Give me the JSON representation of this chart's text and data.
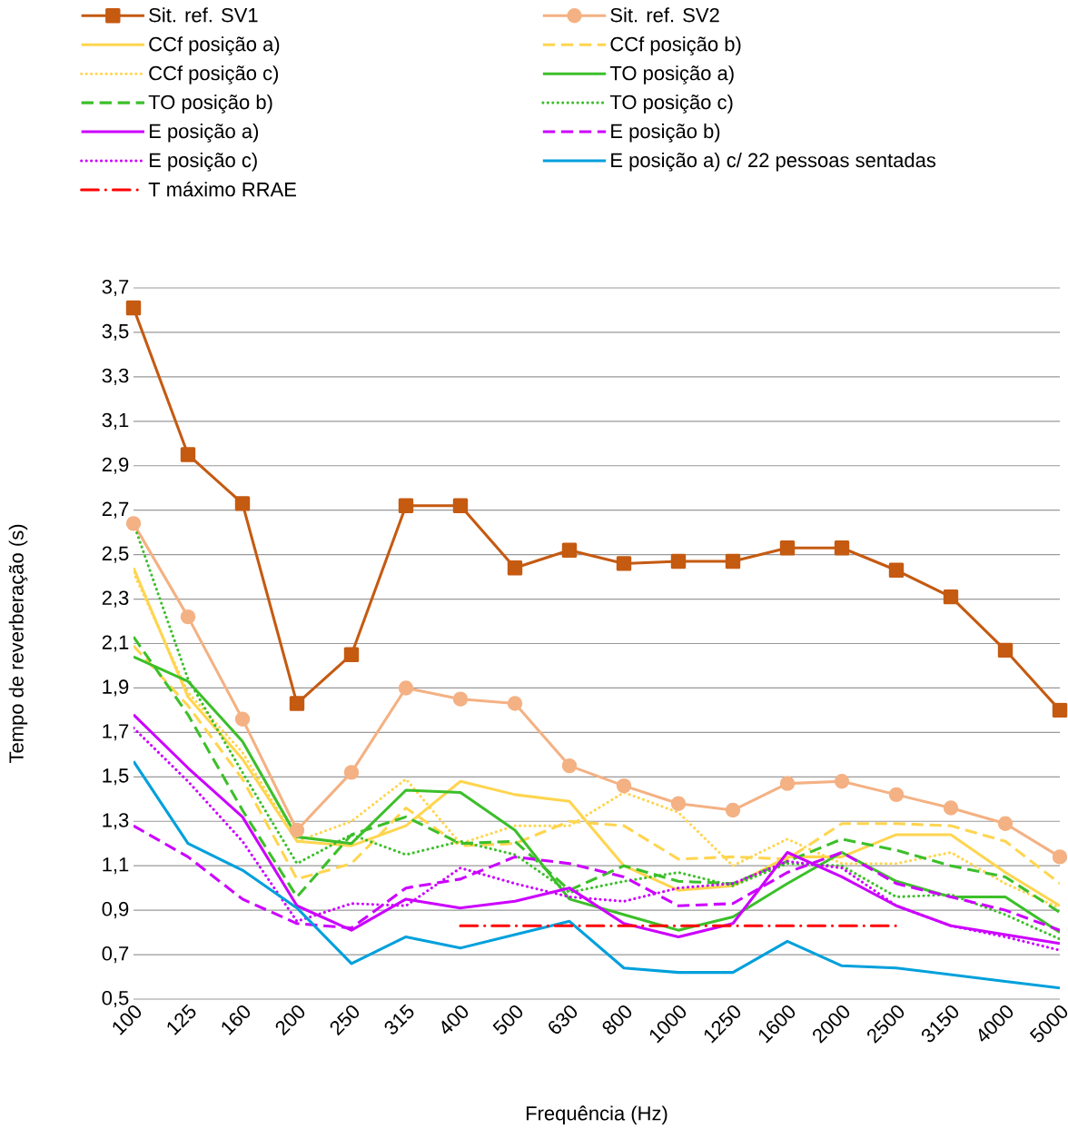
{
  "chart_data": {
    "type": "line",
    "xlabel": "Frequência (Hz)",
    "ylabel": "Tempo de reverberação (s)",
    "categories": [
      "100",
      "125",
      "160",
      "200",
      "250",
      "315",
      "400",
      "500",
      "630",
      "800",
      "1000",
      "1250",
      "1600",
      "2000",
      "2500",
      "3150",
      "4000",
      "5000"
    ],
    "ylim": [
      0.5,
      3.7
    ],
    "yticks": [
      {
        "value": 0.5,
        "label": "0,5"
      },
      {
        "value": 0.7,
        "label": "0,7"
      },
      {
        "value": 0.9,
        "label": "0,9"
      },
      {
        "value": 1.1,
        "label": "1,1"
      },
      {
        "value": 1.3,
        "label": "1,3"
      },
      {
        "value": 1.5,
        "label": "1,5"
      },
      {
        "value": 1.7,
        "label": "1,7"
      },
      {
        "value": 1.9,
        "label": "1,9"
      },
      {
        "value": 2.1,
        "label": "2,1"
      },
      {
        "value": 2.3,
        "label": "2,3"
      },
      {
        "value": 2.5,
        "label": "2,5"
      },
      {
        "value": 2.7,
        "label": "2,7"
      },
      {
        "value": 2.9,
        "label": "2,9"
      },
      {
        "value": 3.1,
        "label": "3,1"
      },
      {
        "value": 3.3,
        "label": "3,3"
      },
      {
        "value": 3.5,
        "label": "3,5"
      },
      {
        "value": 3.7,
        "label": "3,7"
      }
    ],
    "grid": "y",
    "legend": "top",
    "marker": "none",
    "line_style": "solid",
    "series": [
      {
        "name": "Sit. ref. SV1",
        "color": "#c55a11",
        "marker": "square",
        "values": [
          3.61,
          2.95,
          2.73,
          1.83,
          2.05,
          2.72,
          2.72,
          2.44,
          2.52,
          2.46,
          2.47,
          2.47,
          2.53,
          2.53,
          2.43,
          2.31,
          2.07,
          1.8
        ]
      },
      {
        "name": "Sit. ref. SV2",
        "color": "#f4b183",
        "marker": "circle",
        "values": [
          2.64,
          2.22,
          1.76,
          1.26,
          1.52,
          1.9,
          1.85,
          1.83,
          1.55,
          1.46,
          1.38,
          1.35,
          1.47,
          1.48,
          1.42,
          1.36,
          1.29,
          1.14
        ]
      },
      {
        "name": "CCf  posição a)",
        "color": "#ffd54f",
        "values": [
          2.44,
          1.86,
          1.58,
          1.21,
          1.19,
          1.28,
          1.48,
          1.42,
          1.39,
          1.1,
          0.99,
          1.01,
          1.14,
          1.14,
          1.24,
          1.24,
          1.07,
          0.92
        ]
      },
      {
        "name": "CCf  posição b)",
        "color": "#ffd54f",
        "line_style": "dashed",
        "values": [
          2.09,
          1.82,
          1.49,
          1.04,
          1.11,
          1.36,
          1.19,
          1.2,
          1.3,
          1.28,
          1.13,
          1.14,
          1.13,
          1.29,
          1.29,
          1.28,
          1.21,
          1.02
        ]
      },
      {
        "name": "CCf  posição c)",
        "color": "#ffd54f",
        "line_style": "dotted",
        "values": [
          2.42,
          1.88,
          1.61,
          1.21,
          1.3,
          1.49,
          1.2,
          1.28,
          1.28,
          1.43,
          1.34,
          1.1,
          1.22,
          1.11,
          1.11,
          1.16,
          1.02,
          0.91
        ]
      },
      {
        "name": "TO  posição a)",
        "color": "#3cbf2a",
        "values": [
          2.04,
          1.93,
          1.66,
          1.23,
          1.2,
          1.44,
          1.43,
          1.26,
          0.95,
          0.88,
          0.81,
          0.87,
          1.02,
          1.16,
          1.03,
          0.96,
          0.96,
          0.8
        ]
      },
      {
        "name": "TO  posição b)",
        "color": "#3cbf2a",
        "line_style": "dashed",
        "values": [
          2.13,
          1.78,
          1.35,
          0.96,
          1.24,
          1.32,
          1.2,
          1.21,
          0.99,
          1.1,
          1.03,
          1.02,
          1.12,
          1.22,
          1.17,
          1.1,
          1.05,
          0.89
        ]
      },
      {
        "name": "TO  posição c)",
        "color": "#3cbf2a",
        "line_style": "dotted",
        "values": [
          2.64,
          1.94,
          1.52,
          1.11,
          1.24,
          1.15,
          1.21,
          1.15,
          0.98,
          1.03,
          1.07,
          1.01,
          1.11,
          1.1,
          0.96,
          0.97,
          0.88,
          0.77
        ]
      },
      {
        "name": "E  posição a)",
        "color": "#cc00ff",
        "values": [
          1.78,
          1.54,
          1.32,
          0.92,
          0.81,
          0.95,
          0.91,
          0.94,
          1.0,
          0.84,
          0.78,
          0.84,
          1.16,
          1.05,
          0.92,
          0.83,
          0.79,
          0.75
        ]
      },
      {
        "name": "E  posição b)",
        "color": "#cc00ff",
        "line_style": "dashed",
        "values": [
          1.28,
          1.14,
          0.95,
          0.84,
          0.82,
          1.0,
          1.04,
          1.14,
          1.11,
          1.05,
          0.92,
          0.93,
          1.07,
          1.16,
          1.02,
          0.96,
          0.9,
          0.81
        ]
      },
      {
        "name": "E  posição c)",
        "color": "#cc00ff",
        "line_style": "dotted",
        "values": [
          1.72,
          1.48,
          1.21,
          0.85,
          0.93,
          0.92,
          1.09,
          1.02,
          0.96,
          0.94,
          1.0,
          1.02,
          1.12,
          1.09,
          0.92,
          0.83,
          0.78,
          0.72
        ]
      },
      {
        "name": "E  posição a) c/ 22 pessoas sentadas",
        "color": "#00a0dc",
        "values": [
          1.57,
          1.2,
          1.08,
          0.91,
          0.66,
          0.78,
          0.73,
          0.79,
          0.85,
          0.64,
          0.62,
          0.62,
          0.76,
          0.65,
          0.64,
          0.61,
          0.58,
          0.55
        ]
      },
      {
        "name": "T máximo RRAE",
        "color": "#ff0000",
        "line_style": "dashdot",
        "values": [
          null,
          null,
          null,
          null,
          null,
          null,
          0.83,
          0.83,
          0.83,
          0.83,
          0.83,
          0.83,
          0.83,
          0.83,
          0.83,
          null,
          null,
          null
        ]
      }
    ]
  }
}
